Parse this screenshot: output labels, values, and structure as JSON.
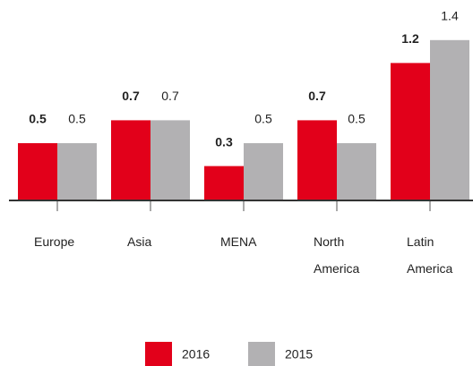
{
  "chart_data": {
    "type": "bar",
    "categories": [
      "Europe",
      "Asia",
      "MENA",
      "North America",
      "Latin America"
    ],
    "series": [
      {
        "name": "2016",
        "color": "#e2001a",
        "values": [
          0.5,
          0.7,
          0.3,
          0.7,
          1.2
        ]
      },
      {
        "name": "2015",
        "color": "#b2b1b3",
        "values": [
          0.5,
          0.7,
          0.5,
          0.5,
          1.4
        ]
      }
    ],
    "ylim": [
      0,
      1.5
    ],
    "legend": "bottom"
  }
}
